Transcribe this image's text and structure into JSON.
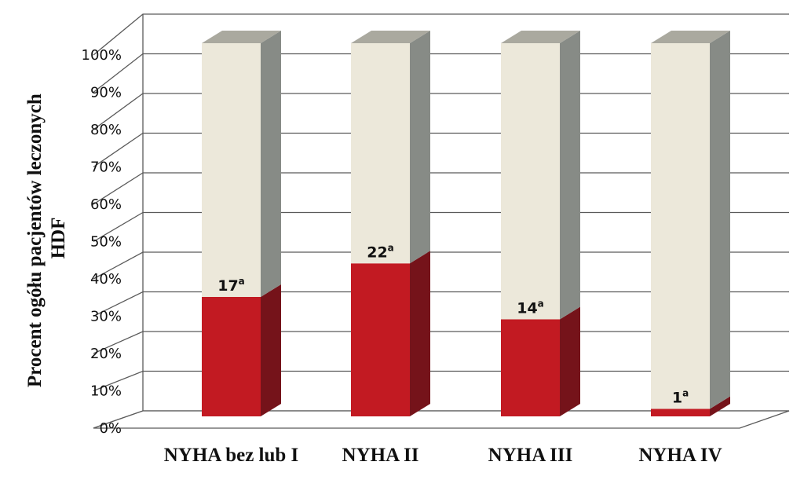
{
  "chart_data": {
    "type": "bar",
    "stacked": true,
    "three_d": true,
    "categories": [
      "NYHA bez lub I",
      "NYHA II",
      "NYHA III",
      "NYHA IV"
    ],
    "series": [
      {
        "values": [
          32,
          41,
          26,
          2
        ],
        "color": "#c21a22",
        "side_color": "#75131a"
      },
      {
        "values": [
          68,
          59,
          74,
          98
        ],
        "color": "#ece8da",
        "side_color": "#878b86"
      }
    ],
    "data_labels": [
      {
        "value": "17",
        "sup": "a"
      },
      {
        "value": "22",
        "sup": "a"
      },
      {
        "value": "14",
        "sup": "a"
      },
      {
        "value": "1",
        "sup": "a"
      }
    ],
    "ylabel_lines": [
      "Procent ogółu pacjentów leczonych",
      "HDF"
    ],
    "yticks": [
      "0%",
      "10%",
      "20%",
      "30%",
      "40%",
      "50%",
      "60%",
      "70%",
      "80%",
      "90%",
      "100%"
    ],
    "ylim": [
      0,
      100
    ],
    "grid": true,
    "top_color": "#aaa99f"
  }
}
